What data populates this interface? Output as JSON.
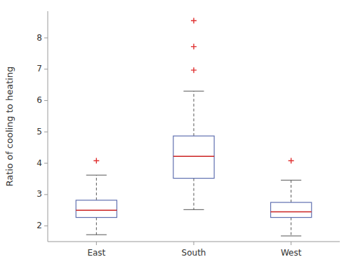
{
  "chart_data": {
    "type": "box",
    "categories": [
      "East",
      "South",
      "West"
    ],
    "boxes": [
      {
        "med": 2.5,
        "q1": 2.27,
        "q3": 2.82,
        "whislo": 1.72,
        "whishi": 3.62,
        "fliers": [
          4.08
        ]
      },
      {
        "med": 4.22,
        "q1": 3.52,
        "q3": 4.87,
        "whislo": 2.52,
        "whishi": 6.3,
        "fliers": [
          6.97,
          7.72,
          8.55
        ]
      },
      {
        "med": 2.45,
        "q1": 2.27,
        "q3": 2.75,
        "whislo": 1.68,
        "whishi": 3.46,
        "fliers": [
          4.08
        ]
      }
    ],
    "color": "#6070B0",
    "ylabel": "Ratio of cooling to heating",
    "ylim": [
      1.5,
      8.85
    ],
    "yticks": [
      2,
      3,
      4,
      5,
      6,
      7,
      8
    ],
    "grid": false
  }
}
